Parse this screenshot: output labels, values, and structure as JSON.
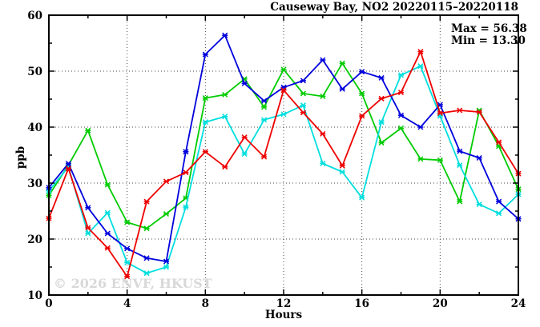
{
  "chart_data": {
    "type": "line",
    "title": "Causeway Bay, NO2 20220115–20220118",
    "annotations": {
      "max_label": "Max = 56.38",
      "min_label": "Min = 13.30"
    },
    "watermark": "© 2026 ENVF, HKUST",
    "xlabel": "Hours",
    "ylabel": "ppb",
    "xlim": [
      0,
      24
    ],
    "ylim": [
      10,
      60
    ],
    "xticks": [
      0,
      4,
      8,
      12,
      16,
      20,
      24
    ],
    "xticks_minor": [
      2,
      6,
      10,
      14,
      18,
      22
    ],
    "yticks": [
      10,
      20,
      30,
      40,
      50,
      60
    ],
    "yticks_minor": [
      15,
      25,
      35,
      45,
      55
    ],
    "grid": {
      "x_lines": [
        4,
        8,
        12,
        16,
        20
      ],
      "y_lines": [
        20,
        30,
        40,
        50
      ],
      "style": "dotted"
    },
    "legend_position": "none",
    "x": [
      0,
      1,
      2,
      3,
      4,
      5,
      6,
      7,
      8,
      9,
      10,
      11,
      12,
      13,
      14,
      15,
      16,
      17,
      18,
      19,
      20,
      21,
      22,
      23,
      24
    ],
    "series": [
      {
        "name": "green",
        "color": "#00cc00",
        "values": [
          27.8,
          33.2,
          39.4,
          29.7,
          23.0,
          21.9,
          24.5,
          27.3,
          45.2,
          45.8,
          48.6,
          43.6,
          50.3,
          46.0,
          45.5,
          51.4,
          46.0,
          37.2,
          39.8,
          34.3,
          34.1,
          26.7,
          43.0,
          36.6,
          28.9
        ]
      },
      {
        "name": "cyan",
        "color": "#00dede",
        "values": [
          28.6,
          32.9,
          21.0,
          24.7,
          15.8,
          13.9,
          15.0,
          25.7,
          40.9,
          41.9,
          35.2,
          41.3,
          42.3,
          43.9,
          33.5,
          32.0,
          27.4,
          40.9,
          49.3,
          50.9,
          42.0,
          33.2,
          26.2,
          24.6,
          28.0
        ]
      },
      {
        "name": "blue",
        "color": "#0000dd",
        "values": [
          29.2,
          33.5,
          25.6,
          21.0,
          18.3,
          16.6,
          16.0,
          35.6,
          53.0,
          56.4,
          47.8,
          44.7,
          47.1,
          48.3,
          52.0,
          46.8,
          49.9,
          48.8,
          42.1,
          40.0,
          44.0,
          35.7,
          34.5,
          26.7,
          23.6
        ]
      },
      {
        "name": "red",
        "color": "#ee0000",
        "values": [
          23.7,
          32.6,
          22.0,
          18.4,
          13.3,
          26.7,
          30.3,
          31.9,
          35.6,
          32.9,
          38.2,
          34.7,
          46.6,
          42.6,
          38.8,
          33.1,
          42.0,
          45.1,
          46.2,
          53.5,
          42.5,
          43.0,
          42.7,
          37.3,
          31.7
        ]
      }
    ],
    "max_value": 56.38,
    "min_value": 13.3
  }
}
